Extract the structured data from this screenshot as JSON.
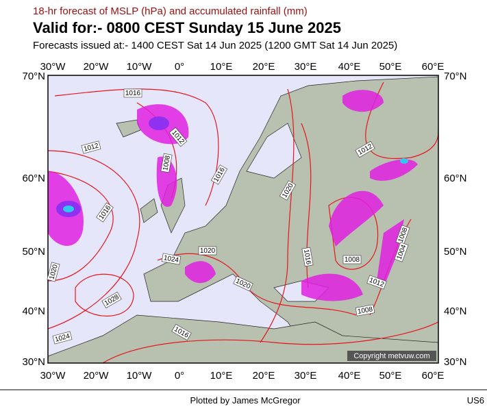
{
  "header": {
    "title": "18-hr forecast of MSLP (hPa) and accumulated rainfall (mm)",
    "valid": "Valid for:- 0800 CEST Sunday 15 June 2025",
    "issued": "Forecasts issued at:- 1400 CEST Sat 14 Jun 2025 (1200 GMT Sat 14 Jun 2025)"
  },
  "axes": {
    "longitudes": [
      "30°W",
      "20°W",
      "10°W",
      "0°",
      "10°E",
      "20°E",
      "30°E",
      "40°E",
      "50°E",
      "60°E"
    ],
    "latitudes": [
      "70°N",
      "60°N",
      "50°N",
      "40°N",
      "30°N"
    ]
  },
  "isobar_labels": [
    "1016",
    "1012",
    "1012",
    "1008",
    "1016",
    "1020",
    "1016",
    "1020",
    "1024",
    "1016",
    "1008",
    "1008",
    "1004",
    "1012",
    "1020",
    "1028",
    "1008",
    "1016",
    "1024",
    "1020",
    "1012"
  ],
  "copyright": "Copyright metvuw.com",
  "footer": {
    "credit": "Plotted by James McGregor",
    "code": "US6"
  }
}
